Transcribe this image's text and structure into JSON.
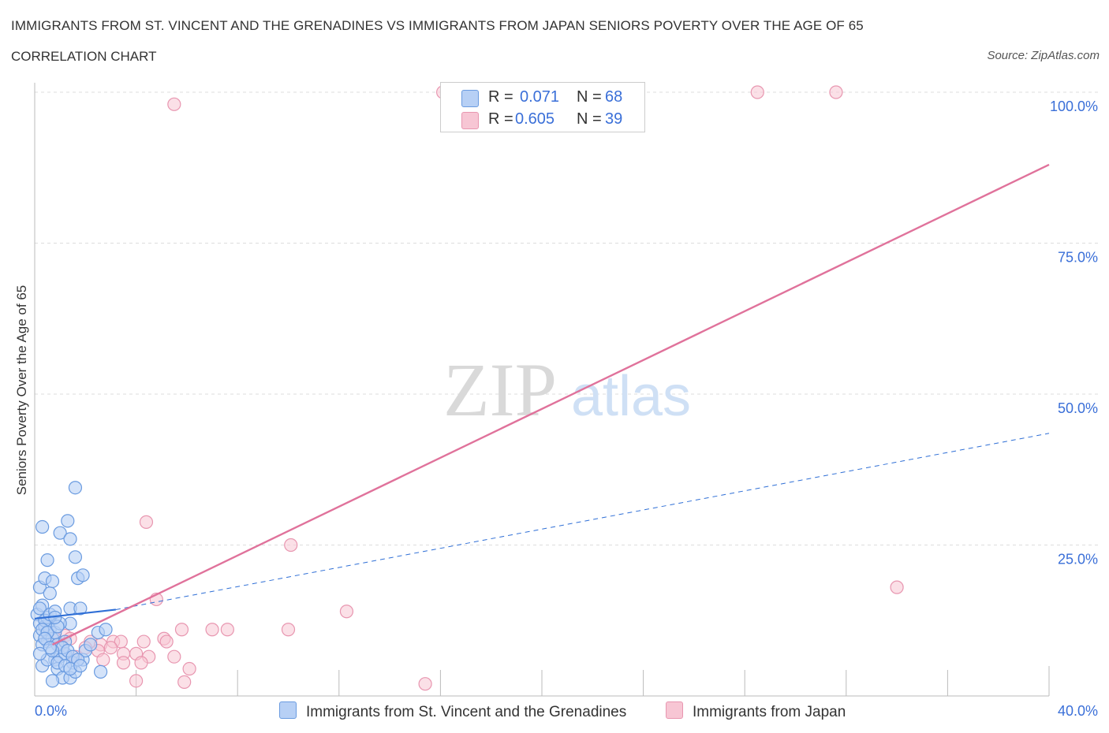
{
  "header": {
    "title": "IMMIGRANTS FROM ST. VINCENT AND THE GRENADINES VS IMMIGRANTS FROM JAPAN SENIORS POVERTY OVER THE AGE OF 65",
    "subtitle": "CORRELATION CHART",
    "source": "Source: ZipAtlas.com"
  },
  "watermark": {
    "zip": "ZIP",
    "atlas": "atlas"
  },
  "colors": {
    "series1_fill": "#b7d0f5",
    "series1_stroke": "#6a9be0",
    "series1_line": "#2f6fd6",
    "series2_fill": "#f7c6d4",
    "series2_stroke": "#e896b0",
    "series2_line": "#e0729b",
    "axis_label": "#3a6fd8",
    "grid": "#dddddd"
  },
  "legend": {
    "r_label": "R =",
    "n_label": "N =",
    "series1": {
      "r": "0.071",
      "n": "68"
    },
    "series2": {
      "r": "0.605",
      "n": "39"
    }
  },
  "chart_data": {
    "type": "scatter",
    "title": "IMMIGRANTS FROM ST. VINCENT AND THE GRENADINES VS IMMIGRANTS FROM JAPAN SENIORS POVERTY OVER THE AGE OF 65",
    "xlabel": "",
    "ylabel": "Seniors Poverty Over the Age of 65",
    "xlim": [
      0,
      40
    ],
    "ylim": [
      0,
      100
    ],
    "x_tick_labels": [
      "0.0%",
      "40.0%"
    ],
    "y_ticks": [
      25,
      50,
      75,
      100
    ],
    "y_tick_labels": [
      "25.0%",
      "50.0%",
      "75.0%",
      "100.0%"
    ],
    "grid": true,
    "series": [
      {
        "name": "Immigrants from St. Vincent and the Grenadines",
        "r": 0.071,
        "n": 68,
        "trend_solid": [
          [
            0,
            12.8
          ],
          [
            3.2,
            14.3
          ]
        ],
        "trend_dashed": [
          [
            3.2,
            14.3
          ],
          [
            40,
            43.5
          ]
        ],
        "points": [
          [
            0.1,
            13.5
          ],
          [
            0.2,
            12.0
          ],
          [
            0.3,
            15.0
          ],
          [
            0.2,
            10.0
          ],
          [
            0.4,
            11.5
          ],
          [
            0.5,
            9.0
          ],
          [
            0.3,
            8.5
          ],
          [
            0.6,
            12.5
          ],
          [
            0.2,
            18.0
          ],
          [
            0.4,
            19.5
          ],
          [
            0.6,
            17.0
          ],
          [
            0.5,
            22.5
          ],
          [
            0.7,
            19.0
          ],
          [
            0.3,
            28.0
          ],
          [
            1.3,
            29.0
          ],
          [
            1.6,
            34.5
          ],
          [
            1.0,
            27.0
          ],
          [
            1.4,
            26.0
          ],
          [
            1.6,
            23.0
          ],
          [
            1.7,
            19.5
          ],
          [
            1.9,
            20.0
          ],
          [
            1.4,
            14.5
          ],
          [
            1.8,
            14.5
          ],
          [
            1.4,
            12.0
          ],
          [
            0.8,
            6.0
          ],
          [
            1.0,
            6.5
          ],
          [
            1.2,
            7.0
          ],
          [
            1.5,
            5.5
          ],
          [
            1.9,
            6.0
          ],
          [
            2.0,
            7.5
          ],
          [
            0.9,
            4.5
          ],
          [
            1.1,
            3.0
          ],
          [
            1.4,
            3.0
          ],
          [
            1.6,
            4.0
          ],
          [
            0.7,
            2.5
          ],
          [
            2.6,
            4.0
          ],
          [
            0.5,
            13.0
          ],
          [
            0.6,
            11.0
          ],
          [
            0.7,
            9.5
          ],
          [
            0.9,
            8.5
          ],
          [
            1.2,
            9.0
          ],
          [
            0.8,
            10.5
          ],
          [
            0.4,
            12.5
          ],
          [
            0.2,
            14.5
          ],
          [
            0.3,
            11.0
          ],
          [
            0.5,
            10.5
          ],
          [
            0.6,
            13.5
          ],
          [
            0.8,
            14.0
          ],
          [
            1.0,
            12.0
          ],
          [
            0.9,
            11.5
          ],
          [
            1.1,
            8.0
          ],
          [
            1.3,
            7.5
          ],
          [
            1.5,
            6.5
          ],
          [
            1.7,
            6.0
          ],
          [
            2.5,
            10.5
          ],
          [
            2.8,
            11.0
          ],
          [
            0.3,
            5.0
          ],
          [
            0.5,
            6.0
          ],
          [
            0.7,
            7.5
          ],
          [
            0.9,
            5.5
          ],
          [
            1.2,
            5.0
          ],
          [
            1.4,
            4.5
          ],
          [
            1.8,
            5.0
          ],
          [
            2.2,
            8.5
          ],
          [
            0.4,
            9.5
          ],
          [
            0.6,
            8.0
          ],
          [
            0.2,
            7.0
          ],
          [
            0.8,
            13.0
          ]
        ]
      },
      {
        "name": "Immigrants from Japan",
        "r": 0.605,
        "n": 39,
        "trend_solid": [
          [
            0.7,
            8.5
          ],
          [
            40,
            88.0
          ]
        ],
        "points": [
          [
            5.5,
            98.0
          ],
          [
            16.1,
            100.0
          ],
          [
            28.5,
            100.0
          ],
          [
            31.6,
            100.0
          ],
          [
            4.4,
            28.8
          ],
          [
            10.1,
            25.0
          ],
          [
            34.0,
            18.0
          ],
          [
            4.8,
            16.0
          ],
          [
            12.3,
            14.0
          ],
          [
            5.8,
            11.0
          ],
          [
            7.0,
            11.0
          ],
          [
            7.6,
            11.0
          ],
          [
            10.0,
            11.0
          ],
          [
            1.2,
            10.0
          ],
          [
            1.4,
            9.5
          ],
          [
            2.2,
            9.0
          ],
          [
            2.6,
            8.5
          ],
          [
            3.1,
            9.0
          ],
          [
            3.4,
            9.0
          ],
          [
            4.3,
            9.0
          ],
          [
            5.1,
            9.5
          ],
          [
            5.2,
            9.0
          ],
          [
            2.0,
            8.0
          ],
          [
            2.5,
            7.5
          ],
          [
            3.0,
            8.0
          ],
          [
            3.5,
            7.0
          ],
          [
            4.0,
            7.0
          ],
          [
            4.5,
            6.5
          ],
          [
            5.5,
            6.5
          ],
          [
            1.6,
            6.5
          ],
          [
            2.7,
            6.0
          ],
          [
            3.5,
            5.5
          ],
          [
            4.2,
            5.5
          ],
          [
            6.1,
            4.5
          ],
          [
            4.0,
            2.5
          ],
          [
            5.9,
            2.3
          ],
          [
            15.4,
            2.0
          ],
          [
            1.0,
            8.5
          ],
          [
            0.8,
            9.5
          ]
        ]
      }
    ]
  }
}
